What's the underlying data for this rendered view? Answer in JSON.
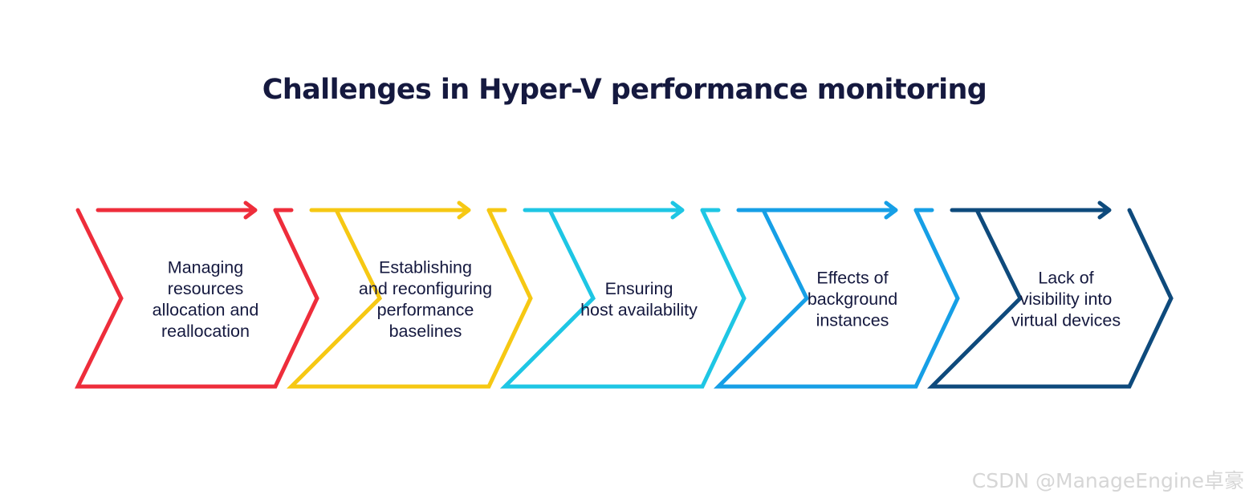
{
  "title": "Challenges in Hyper-V performance monitoring",
  "watermark": "CSDN @ManageEngine卓豪",
  "steps": [
    {
      "id": "resources",
      "lines": [
        "Managing",
        "resources",
        "allocation and",
        "reallocation"
      ],
      "color": "#ee2d3b"
    },
    {
      "id": "baselines",
      "lines": [
        "Establishing",
        "and reconfiguring",
        "performance",
        "baselines"
      ],
      "color": "#f6c813"
    },
    {
      "id": "availability",
      "lines": [
        "Ensuring",
        "host availability"
      ],
      "color": "#1ec6e4"
    },
    {
      "id": "background",
      "lines": [
        "Effects of",
        "background",
        "instances"
      ],
      "color": "#169fe6"
    },
    {
      "id": "visibility",
      "lines": [
        "Lack of",
        "visibility into",
        "virtual devices"
      ],
      "color": "#0e4a7c"
    }
  ]
}
